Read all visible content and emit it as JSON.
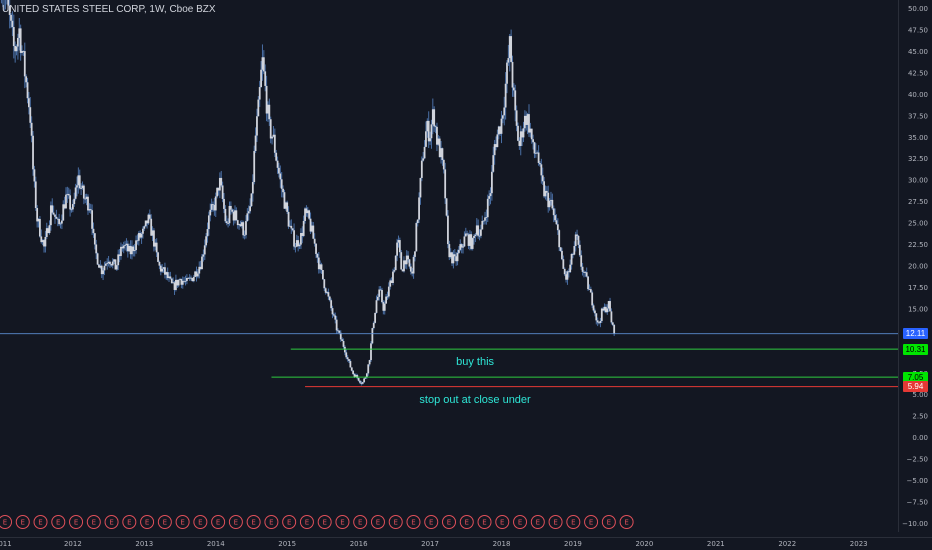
{
  "title": "UNITED STATES STEEL CORP, 1W, Cboe BZX",
  "chart_data": {
    "type": "candlestick",
    "title": "UNITED STATES STEEL CORP, 1W, Cboe BZX",
    "symbol": "UNITED STATES STEEL CORP",
    "interval": "1W",
    "exchange": "Cboe BZX",
    "ylim": [
      -11,
      51
    ],
    "xlim": [
      2010.98,
      2023.55
    ],
    "y_ticks": [
      "50.00",
      "47.50",
      "45.00",
      "42.50",
      "40.00",
      "37.50",
      "35.00",
      "32.50",
      "30.00",
      "27.50",
      "25.00",
      "22.50",
      "20.00",
      "17.50",
      "15.00",
      "12.50",
      "10.00",
      "7.50",
      "5.00",
      "2.50",
      "0.00",
      "−2.50",
      "−5.00",
      "−7.50",
      "−10.00"
    ],
    "x_ticks": [
      "011",
      "2012",
      "2013",
      "2014",
      "2015",
      "2016",
      "2017",
      "2018",
      "2019",
      "2020",
      "2021",
      "2022",
      "2023"
    ],
    "price_path": [
      [
        2011.0,
        53.0
      ],
      [
        2011.1,
        49.5
      ],
      [
        2011.18,
        45.0
      ],
      [
        2011.25,
        47.5
      ],
      [
        2011.32,
        43.0
      ],
      [
        2011.4,
        38.0
      ],
      [
        2011.45,
        30.0
      ],
      [
        2011.5,
        25.5
      ],
      [
        2011.6,
        22.0
      ],
      [
        2011.7,
        27.0
      ],
      [
        2011.8,
        24.5
      ],
      [
        2011.9,
        28.0
      ],
      [
        2012.0,
        26.5
      ],
      [
        2012.07,
        30.5
      ],
      [
        2012.15,
        28.0
      ],
      [
        2012.25,
        27.0
      ],
      [
        2012.3,
        22.0
      ],
      [
        2012.4,
        19.5
      ],
      [
        2012.5,
        21.0
      ],
      [
        2012.6,
        19.8
      ],
      [
        2012.7,
        22.5
      ],
      [
        2012.8,
        21.5
      ],
      [
        2012.9,
        23.0
      ],
      [
        2013.0,
        24.0
      ],
      [
        2013.05,
        25.5
      ],
      [
        2013.12,
        23.5
      ],
      [
        2013.2,
        20.0
      ],
      [
        2013.3,
        19.0
      ],
      [
        2013.4,
        17.5
      ],
      [
        2013.5,
        18.5
      ],
      [
        2013.6,
        18.0
      ],
      [
        2013.7,
        19.0
      ],
      [
        2013.8,
        20.5
      ],
      [
        2013.9,
        25.5
      ],
      [
        2014.0,
        27.5
      ],
      [
        2014.05,
        30.0
      ],
      [
        2014.1,
        27.5
      ],
      [
        2014.15,
        24.5
      ],
      [
        2014.2,
        26.5
      ],
      [
        2014.3,
        25.5
      ],
      [
        2014.4,
        24.0
      ],
      [
        2014.5,
        27.5
      ],
      [
        2014.55,
        34.5
      ],
      [
        2014.6,
        38.5
      ],
      [
        2014.65,
        44.0
      ],
      [
        2014.7,
        40.0
      ],
      [
        2014.75,
        36.0
      ],
      [
        2014.8,
        35.0
      ],
      [
        2014.9,
        30.0
      ],
      [
        2015.0,
        26.0
      ],
      [
        2015.05,
        24.0
      ],
      [
        2015.12,
        22.5
      ],
      [
        2015.2,
        23.5
      ],
      [
        2015.25,
        26.0
      ],
      [
        2015.3,
        25.5
      ],
      [
        2015.4,
        22.0
      ],
      [
        2015.45,
        20.0
      ],
      [
        2015.5,
        18.5
      ],
      [
        2015.6,
        15.5
      ],
      [
        2015.7,
        12.5
      ],
      [
        2015.8,
        10.5
      ],
      [
        2015.85,
        9.0
      ],
      [
        2015.92,
        7.5
      ],
      [
        2016.0,
        6.8
      ],
      [
        2016.05,
        6.3
      ],
      [
        2016.1,
        7.2
      ],
      [
        2016.15,
        9.0
      ],
      [
        2016.2,
        13.0
      ],
      [
        2016.25,
        16.0
      ],
      [
        2016.3,
        17.0
      ],
      [
        2016.35,
        15.0
      ],
      [
        2016.4,
        16.5
      ],
      [
        2016.5,
        20.0
      ],
      [
        2016.55,
        23.0
      ],
      [
        2016.6,
        19.5
      ],
      [
        2016.65,
        21.0
      ],
      [
        2016.75,
        19.0
      ],
      [
        2016.85,
        28.0
      ],
      [
        2016.9,
        33.0
      ],
      [
        2016.95,
        36.0
      ],
      [
        2017.0,
        35.5
      ],
      [
        2017.05,
        38.0
      ],
      [
        2017.1,
        34.5
      ],
      [
        2017.15,
        33.0
      ],
      [
        2017.2,
        30.0
      ],
      [
        2017.25,
        22.0
      ],
      [
        2017.3,
        21.0
      ],
      [
        2017.35,
        20.5
      ],
      [
        2017.45,
        22.5
      ],
      [
        2017.5,
        23.5
      ],
      [
        2017.6,
        22.5
      ],
      [
        2017.65,
        25.0
      ],
      [
        2017.7,
        23.5
      ],
      [
        2017.8,
        27.0
      ],
      [
        2017.85,
        29.0
      ],
      [
        2017.9,
        34.0
      ],
      [
        2017.95,
        35.5
      ],
      [
        2018.0,
        37.0
      ],
      [
        2018.05,
        40.5
      ],
      [
        2018.1,
        44.5
      ],
      [
        2018.12,
        46.0
      ],
      [
        2018.15,
        42.0
      ],
      [
        2018.2,
        36.5
      ],
      [
        2018.25,
        34.0
      ],
      [
        2018.3,
        36.5
      ],
      [
        2018.35,
        37.5
      ],
      [
        2018.4,
        36.0
      ],
      [
        2018.45,
        33.0
      ],
      [
        2018.5,
        33.5
      ],
      [
        2018.55,
        30.0
      ],
      [
        2018.6,
        28.5
      ],
      [
        2018.7,
        27.0
      ],
      [
        2018.75,
        25.0
      ],
      [
        2018.8,
        23.5
      ],
      [
        2018.85,
        20.0
      ],
      [
        2018.9,
        18.5
      ],
      [
        2018.95,
        19.5
      ],
      [
        2019.0,
        21.5
      ],
      [
        2019.05,
        23.5
      ],
      [
        2019.1,
        20.5
      ],
      [
        2019.2,
        18.0
      ],
      [
        2019.3,
        15.0
      ],
      [
        2019.35,
        13.0
      ],
      [
        2019.4,
        14.5
      ],
      [
        2019.45,
        15.0
      ],
      [
        2019.5,
        15.5
      ],
      [
        2019.55,
        13.0
      ],
      [
        2019.58,
        12.11
      ]
    ],
    "horizontal_lines": [
      {
        "name": "last price",
        "price": 12.11,
        "label": "12.11",
        "color": "#5b8bd0",
        "x_start": 2010.98
      },
      {
        "name": "upper green",
        "price": 10.31,
        "label": "10.31",
        "color": "#2ecc40",
        "x_start": 2015.05
      },
      {
        "name": "lower green",
        "price": 7.05,
        "label": "7.05",
        "color": "#2ecc40",
        "x_start": 2014.78
      },
      {
        "name": "red stop",
        "price": 5.94,
        "label": "5.94",
        "color": "#e53935",
        "x_start": 2015.25
      }
    ],
    "annotations": [
      {
        "text": "buy this",
        "x": 2017.63,
        "y": 8.7
      },
      {
        "text": "stop out at close under",
        "x": 2017.63,
        "y": 4.3
      }
    ],
    "earnings_count": 36,
    "earnings_label": "E"
  },
  "colors": {
    "background": "#131722",
    "candle_body": "#d1d4dc",
    "candle_wick": "#4a6fa5",
    "grid_text": "#b2b5be",
    "annotation": "#2ee6d6",
    "earnings_circle": "#e0505a"
  }
}
